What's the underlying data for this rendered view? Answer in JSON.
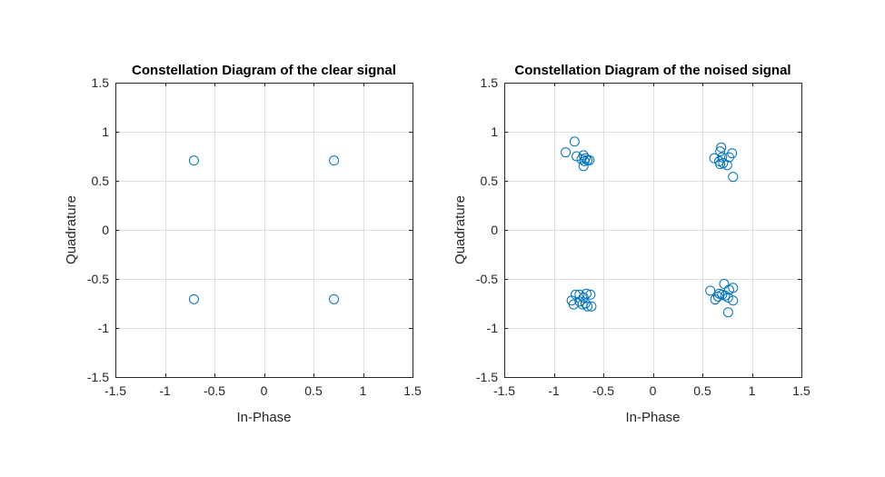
{
  "chart_data": [
    {
      "type": "scatter",
      "title": "Constellation Diagram of the clear signal",
      "xlabel": "In-Phase",
      "ylabel": "Quadrature",
      "xlim": [
        -1.5,
        1.5
      ],
      "ylim": [
        -1.5,
        1.5
      ],
      "xticks": [
        -1.5,
        -1,
        -0.5,
        0,
        0.5,
        1,
        1.5
      ],
      "yticks": [
        -1.5,
        -1,
        -0.5,
        0,
        0.5,
        1,
        1.5
      ],
      "xtick_labels": [
        "-1.5",
        "-1",
        "-0.5",
        "0",
        "0.5",
        "1",
        "1.5"
      ],
      "ytick_labels": [
        "-1.5",
        "-1",
        "-0.5",
        "0",
        "0.5",
        "1",
        "1.5"
      ],
      "grid": true,
      "marker": "circle",
      "color": "#0072BD",
      "points": [
        [
          -0.707,
          0.707
        ],
        [
          0.707,
          0.707
        ],
        [
          -0.707,
          -0.707
        ],
        [
          0.707,
          -0.707
        ]
      ]
    },
    {
      "type": "scatter",
      "title": "Constellation Diagram of the noised signal",
      "xlabel": "In-Phase",
      "ylabel": "Quadrature",
      "xlim": [
        -1.5,
        1.5
      ],
      "ylim": [
        -1.5,
        1.5
      ],
      "xticks": [
        -1.5,
        -1,
        -0.5,
        0,
        0.5,
        1,
        1.5
      ],
      "yticks": [
        -1.5,
        -1,
        -0.5,
        0,
        0.5,
        1,
        1.5
      ],
      "xtick_labels": [
        "-1.5",
        "-1",
        "-0.5",
        "0",
        "0.5",
        "1",
        "1.5"
      ],
      "ytick_labels": [
        "-1.5",
        "-1",
        "-0.5",
        "0",
        "0.5",
        "1",
        "1.5"
      ],
      "grid": true,
      "marker": "circle",
      "color": "#0072BD",
      "points": [
        [
          -0.79,
          0.9
        ],
        [
          -0.88,
          0.79
        ],
        [
          -0.77,
          0.75
        ],
        [
          -0.7,
          0.76
        ],
        [
          -0.68,
          0.73
        ],
        [
          -0.72,
          0.72
        ],
        [
          -0.66,
          0.71
        ],
        [
          -0.69,
          0.7
        ],
        [
          -0.64,
          0.71
        ],
        [
          -0.7,
          0.65
        ],
        [
          0.69,
          0.84
        ],
        [
          0.68,
          0.8
        ],
        [
          0.8,
          0.78
        ],
        [
          0.62,
          0.73
        ],
        [
          0.7,
          0.74
        ],
        [
          0.77,
          0.74
        ],
        [
          0.67,
          0.7
        ],
        [
          0.71,
          0.68
        ],
        [
          0.68,
          0.67
        ],
        [
          0.75,
          0.66
        ],
        [
          0.81,
          0.54
        ],
        [
          -0.74,
          -0.66
        ],
        [
          -0.78,
          -0.66
        ],
        [
          -0.67,
          -0.65
        ],
        [
          -0.63,
          -0.66
        ],
        [
          -0.7,
          -0.69
        ],
        [
          -0.82,
          -0.72
        ],
        [
          -0.74,
          -0.73
        ],
        [
          -0.68,
          -0.75
        ],
        [
          -0.8,
          -0.76
        ],
        [
          -0.71,
          -0.76
        ],
        [
          -0.66,
          -0.78
        ],
        [
          -0.62,
          -0.78
        ],
        [
          0.58,
          -0.62
        ],
        [
          0.72,
          -0.55
        ],
        [
          0.81,
          -0.59
        ],
        [
          0.77,
          -0.61
        ],
        [
          0.67,
          -0.65
        ],
        [
          0.7,
          -0.66
        ],
        [
          0.73,
          -0.67
        ],
        [
          0.66,
          -0.68
        ],
        [
          0.76,
          -0.69
        ],
        [
          0.63,
          -0.71
        ],
        [
          0.81,
          -0.72
        ],
        [
          0.76,
          -0.84
        ]
      ]
    }
  ]
}
